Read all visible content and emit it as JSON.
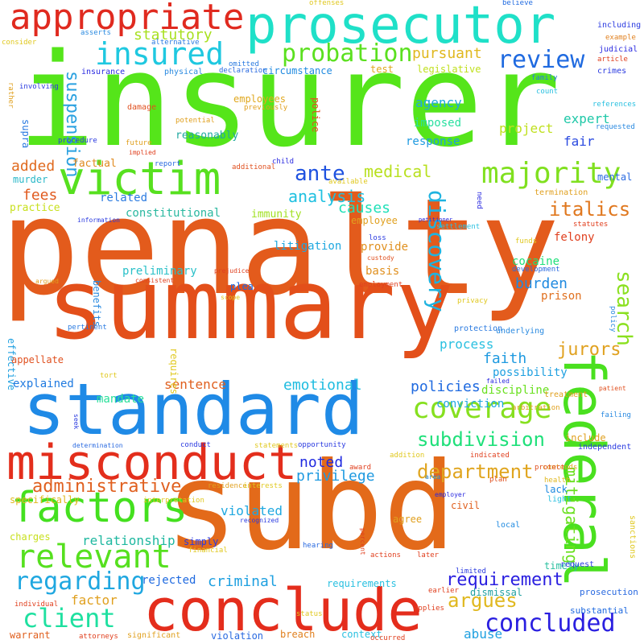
{
  "words": [
    {
      "text": "penalty",
      "color": "#e35b1c",
      "rotated": false
    },
    {
      "text": "insurer",
      "color": "#55e51a",
      "rotated": false
    },
    {
      "text": "summary",
      "color": "#e34f1a",
      "rotated": false
    },
    {
      "text": "subd",
      "color": "#e36a1a",
      "rotated": false
    },
    {
      "text": "standard",
      "color": "#1f8ae6",
      "rotated": false
    },
    {
      "text": "prosecutor",
      "color": "#1fe0c8",
      "rotated": false
    },
    {
      "text": "conclude",
      "color": "#e42d1c",
      "rotated": false
    },
    {
      "text": "misconduct",
      "color": "#e32e1c",
      "rotated": false
    },
    {
      "text": "federal",
      "color": "#4ae01f",
      "rotated": true
    },
    {
      "text": "victim",
      "color": "#57e01f",
      "rotated": false
    },
    {
      "text": "appropriate",
      "color": "#e02a1f",
      "rotated": false
    },
    {
      "text": "factors",
      "color": "#44e01f",
      "rotated": false
    },
    {
      "text": "majority",
      "color": "#80e01f",
      "rotated": false
    },
    {
      "text": "relevant",
      "color": "#56e01f",
      "rotated": false
    },
    {
      "text": "coverage",
      "color": "#86e01f",
      "rotated": false
    },
    {
      "text": "insured",
      "color": "#1fc8e0",
      "rotated": false
    },
    {
      "text": "probation",
      "color": "#5be01f",
      "rotated": false
    },
    {
      "text": "review",
      "color": "#1f6ae0",
      "rotated": false
    },
    {
      "text": "discovery",
      "color": "#1fb3e0",
      "rotated": true
    },
    {
      "text": "search",
      "color": "#8ae01f",
      "rotated": true
    },
    {
      "text": "ante",
      "color": "#1f52e0",
      "rotated": false
    },
    {
      "text": "regarding",
      "color": "#1fa7e0",
      "rotated": false
    },
    {
      "text": "client",
      "color": "#1fe0a0",
      "rotated": false
    },
    {
      "text": "concluded",
      "color": "#2a1fe0",
      "rotated": false
    },
    {
      "text": "department",
      "color": "#e0a51f",
      "rotated": false
    },
    {
      "text": "subdivision",
      "color": "#1fe07a",
      "rotated": false
    },
    {
      "text": "argues",
      "color": "#e0b81f",
      "rotated": false
    },
    {
      "text": "administrative",
      "color": "#e0601f",
      "rotated": false
    },
    {
      "text": "italics",
      "color": "#e0781f",
      "rotated": false
    },
    {
      "text": "requirement",
      "color": "#2a1fe0",
      "rotated": false
    },
    {
      "text": "analysis",
      "color": "#1fc0e0",
      "rotated": false
    },
    {
      "text": "medical",
      "color": "#b8e01f",
      "rotated": false
    },
    {
      "text": "pursuant",
      "color": "#e0b81f",
      "rotated": false
    },
    {
      "text": "suspension",
      "color": "#2aa1e0",
      "rotated": true
    },
    {
      "text": "statutory",
      "color": "#a8e01f",
      "rotated": false
    },
    {
      "text": "jurors",
      "color": "#e0a11f",
      "rotated": false
    },
    {
      "text": "emotional",
      "color": "#1fbce0",
      "rotated": false
    },
    {
      "text": "policies",
      "color": "#1f6ae0",
      "rotated": false
    },
    {
      "text": "mitigating",
      "color": "#6ae01f",
      "rotated": true
    },
    {
      "text": "added",
      "color": "#e06a1f",
      "rotated": false
    },
    {
      "text": "causes",
      "color": "#1fe0b8",
      "rotated": false
    },
    {
      "text": "fees",
      "color": "#e05a1f",
      "rotated": false
    },
    {
      "text": "noted",
      "color": "#1f2ae0",
      "rotated": false
    },
    {
      "text": "privilege",
      "color": "#1f9ae0",
      "rotated": false
    },
    {
      "text": "criminal",
      "color": "#1fa0e0",
      "rotated": false
    },
    {
      "text": "burden",
      "color": "#1f8ae0",
      "rotated": false
    },
    {
      "text": "faith",
      "color": "#1f9ae0",
      "rotated": false
    },
    {
      "text": "process",
      "color": "#2ac0e0",
      "rotated": false
    },
    {
      "text": "agency",
      "color": "#1fa8e0",
      "rotated": false
    },
    {
      "text": "expert",
      "color": "#1fc8a8",
      "rotated": false
    },
    {
      "text": "project",
      "color": "#c0e01f",
      "rotated": false
    },
    {
      "text": "fair",
      "color": "#2a4ae0",
      "rotated": false
    },
    {
      "text": "factor",
      "color": "#e0a01f",
      "rotated": false
    },
    {
      "text": "abuse",
      "color": "#1fa0e0",
      "rotated": false
    },
    {
      "text": "sentence",
      "color": "#e0601f",
      "rotated": false
    },
    {
      "text": "violated",
      "color": "#1fa8e0",
      "rotated": false
    },
    {
      "text": "relationship",
      "color": "#1fb8a0",
      "rotated": false
    },
    {
      "text": "constitutional",
      "color": "#2ab8a0",
      "rotated": false
    },
    {
      "text": "litigation",
      "color": "#1fa8e0",
      "rotated": false
    },
    {
      "text": "preliminary",
      "color": "#2ac0c8",
      "rotated": false
    },
    {
      "text": "mandate",
      "color": "#2ae09a",
      "rotated": false
    },
    {
      "text": "explained",
      "color": "#1f7ae0",
      "rotated": false
    },
    {
      "text": "rejected",
      "color": "#1f6ae0",
      "rotated": false
    },
    {
      "text": "related",
      "color": "#2a7ae0",
      "rotated": false
    },
    {
      "text": "imposed",
      "color": "#2ae0a0",
      "rotated": false
    },
    {
      "text": "response",
      "color": "#1f9ae0",
      "rotated": false
    },
    {
      "text": "felony",
      "color": "#e0401f",
      "rotated": false
    },
    {
      "text": "cocaine",
      "color": "#1fe07a",
      "rotated": false
    },
    {
      "text": "prison",
      "color": "#e0701f",
      "rotated": false
    },
    {
      "text": "basis",
      "color": "#e0901f",
      "rotated": false
    },
    {
      "text": "provide",
      "color": "#e0901f",
      "rotated": false
    },
    {
      "text": "possibility",
      "color": "#1fa0e0",
      "rotated": false
    },
    {
      "text": "discipline",
      "color": "#6ae01f",
      "rotated": false
    },
    {
      "text": "conviction",
      "color": "#1fa8e0",
      "rotated": false
    },
    {
      "text": "practice",
      "color": "#c8e01f",
      "rotated": false
    },
    {
      "text": "immunity",
      "color": "#a0e01f",
      "rotated": false
    },
    {
      "text": "employees",
      "color": "#e0a81f",
      "rotated": false
    },
    {
      "text": "reasonably",
      "color": "#1fa8a0",
      "rotated": false
    },
    {
      "text": "factual",
      "color": "#e08a1f",
      "rotated": false
    },
    {
      "text": "legislative",
      "color": "#c0e01f",
      "rotated": false
    },
    {
      "text": "circumstance",
      "color": "#1f8ae0",
      "rotated": false
    },
    {
      "text": "police",
      "color": "#e0501f",
      "rotated": true
    },
    {
      "text": "requires",
      "color": "#e0c81f",
      "rotated": true
    },
    {
      "text": "benefits",
      "color": "#2a8ae0",
      "rotated": true
    },
    {
      "text": "effective",
      "color": "#1fa0e0",
      "rotated": true
    },
    {
      "text": "appellate",
      "color": "#e0501f",
      "rotated": false
    },
    {
      "text": "requirements",
      "color": "#2ac0e0",
      "rotated": false
    },
    {
      "text": "timely",
      "color": "#2ac0a0",
      "rotated": false
    },
    {
      "text": "simply",
      "color": "#2a3ae0",
      "rotated": false
    },
    {
      "text": "agree",
      "color": "#e0a01f",
      "rotated": false
    },
    {
      "text": "lack",
      "color": "#1f8ae0",
      "rotated": false
    },
    {
      "text": "include",
      "color": "#e0a01f",
      "rotated": false
    },
    {
      "text": "dismissal",
      "color": "#1fa0a0",
      "rotated": false
    },
    {
      "text": "prosecution",
      "color": "#2a6ae0",
      "rotated": false
    },
    {
      "text": "substantial",
      "color": "#1f6ae0",
      "rotated": false
    },
    {
      "text": "civil",
      "color": "#e0601f",
      "rotated": false
    },
    {
      "text": "breach",
      "color": "#e0801f",
      "rotated": false
    },
    {
      "text": "violation",
      "color": "#2a6ae0",
      "rotated": false
    },
    {
      "text": "context",
      "color": "#2ac0e0",
      "rotated": false
    },
    {
      "text": "warrant",
      "color": "#e0601f",
      "rotated": false
    },
    {
      "text": "charges",
      "color": "#c8e01f",
      "rotated": false
    },
    {
      "text": "specifically",
      "color": "#e0b81f",
      "rotated": false
    },
    {
      "text": "employee",
      "color": "#e0a01f",
      "rotated": false
    },
    {
      "text": "mental",
      "color": "#2a6ae0",
      "rotated": false
    },
    {
      "text": "murder",
      "color": "#2ab8c8",
      "rotated": false
    },
    {
      "text": "plea",
      "color": "#1f6ae0",
      "rotated": false
    },
    {
      "text": "supra",
      "color": "#2a7ae0",
      "rotated": true
    },
    {
      "text": "damage",
      "color": "#e0501f",
      "rotated": false
    },
    {
      "text": "test",
      "color": "#e0a81f",
      "rotated": false
    },
    {
      "text": "offenses",
      "color": "#e0c81f",
      "rotated": false
    },
    {
      "text": "believe",
      "color": "#1f6ae0",
      "rotated": false
    },
    {
      "text": "including",
      "color": "#2a3ae0",
      "rotated": false
    },
    {
      "text": "example",
      "color": "#e0801f",
      "rotated": false
    },
    {
      "text": "judicial",
      "color": "#2a2ae0",
      "rotated": false
    },
    {
      "text": "article",
      "color": "#e0401f",
      "rotated": false
    },
    {
      "text": "crimes",
      "color": "#2a3ae0",
      "rotated": false
    },
    {
      "text": "family",
      "color": "#2a7ae0",
      "rotated": false
    },
    {
      "text": "count",
      "color": "#2ac0e0",
      "rotated": false
    },
    {
      "text": "references",
      "color": "#2ac0e0",
      "rotated": false
    },
    {
      "text": "requested",
      "color": "#2a8ae0",
      "rotated": false
    },
    {
      "text": "termination",
      "color": "#e0a01f",
      "rotated": false
    },
    {
      "text": "statutes",
      "color": "#e0401f",
      "rotated": false
    },
    {
      "text": "funds",
      "color": "#e0c81f",
      "rotated": false
    },
    {
      "text": "development",
      "color": "#2a6ae0",
      "rotated": false
    },
    {
      "text": "protection",
      "color": "#2a7ae0",
      "rotated": false
    },
    {
      "text": "underlying",
      "color": "#2a8ae0",
      "rotated": false
    },
    {
      "text": "treatment",
      "color": "#e0a01f",
      "rotated": false
    },
    {
      "text": "arbitration",
      "color": "#e0a01f",
      "rotated": false
    },
    {
      "text": "independent",
      "color": "#2a3ae0",
      "rotated": false
    },
    {
      "text": "contends",
      "color": "#e0a01f",
      "rotated": false
    },
    {
      "text": "protect",
      "color": "#e0501f",
      "rotated": false
    },
    {
      "text": "health",
      "color": "#e0b81f",
      "rotated": false
    },
    {
      "text": "local",
      "color": "#1f8ae0",
      "rotated": false
    },
    {
      "text": "request",
      "color": "#2a3ae0",
      "rotated": false
    },
    {
      "text": "light",
      "color": "#2ac0e0",
      "rotated": false
    },
    {
      "text": "sanctions",
      "color": "#e0c81f",
      "rotated": true
    },
    {
      "text": "policy",
      "color": "#2a8ae0",
      "rotated": true
    },
    {
      "text": "patient",
      "color": "#e0501f",
      "rotated": false
    },
    {
      "text": "failing",
      "color": "#2a8ae0",
      "rotated": false
    },
    {
      "text": "consider",
      "color": "#e0c81f",
      "rotated": false
    },
    {
      "text": "asserts",
      "color": "#2a8ae0",
      "rotated": false
    },
    {
      "text": "involving",
      "color": "#2a3ae0",
      "rotated": false
    },
    {
      "text": "insurance",
      "color": "#2a2ae0",
      "rotated": false
    },
    {
      "text": "physical",
      "color": "#2a8ae0",
      "rotated": false
    },
    {
      "text": "omitted",
      "color": "#2a7ae0",
      "rotated": false
    },
    {
      "text": "declaration",
      "color": "#2a6ae0",
      "rotated": false
    },
    {
      "text": "alternative",
      "color": "#2a7ae0",
      "rotated": false
    },
    {
      "text": "rather",
      "color": "#e0a01f",
      "rotated": true
    },
    {
      "text": "procedure",
      "color": "#2a3ae0",
      "rotated": false
    },
    {
      "text": "potential",
      "color": "#e0a01f",
      "rotated": false
    },
    {
      "text": "future",
      "color": "#e0a01f",
      "rotated": false
    },
    {
      "text": "implied",
      "color": "#e0401f",
      "rotated": false
    },
    {
      "text": "report",
      "color": "#2a6ae0",
      "rotated": false
    },
    {
      "text": "previously",
      "color": "#e0a01f",
      "rotated": false
    },
    {
      "text": "additional",
      "color": "#e0501f",
      "rotated": false
    },
    {
      "text": "child",
      "color": "#2a2ae0",
      "rotated": false
    },
    {
      "text": "available",
      "color": "#e0c81f",
      "rotated": false
    },
    {
      "text": "need",
      "color": "#2a2ae0",
      "rotated": true
    },
    {
      "text": "petitioner",
      "color": "#2a2ae0",
      "rotated": false
    },
    {
      "text": "settlement",
      "color": "#2ac0e0",
      "rotated": false
    },
    {
      "text": "information",
      "color": "#2a3ae0",
      "rotated": false
    },
    {
      "text": "loss",
      "color": "#2a3ae0",
      "rotated": false
    },
    {
      "text": "custody",
      "color": "#e0501f",
      "rotated": false
    },
    {
      "text": "argued",
      "color": "#e0a01f",
      "rotated": false
    },
    {
      "text": "consistent",
      "color": "#e0401f",
      "rotated": false
    },
    {
      "text": "prejudice",
      "color": "#e0401f",
      "rotated": false
    },
    {
      "text": "employment",
      "color": "#e0401f",
      "rotated": false
    },
    {
      "text": "scope",
      "color": "#e0c81f",
      "rotated": false
    },
    {
      "text": "privacy",
      "color": "#e0c81f",
      "rotated": false
    },
    {
      "text": "pertinent",
      "color": "#2a7ae0",
      "rotated": false
    },
    {
      "text": "tort",
      "color": "#e0c81f",
      "rotated": false
    },
    {
      "text": "failed",
      "color": "#2a2ae0",
      "rotated": false
    },
    {
      "text": "seek",
      "color": "#2a3ae0",
      "rotated": true
    },
    {
      "text": "determination",
      "color": "#2a6ae0",
      "rotated": false
    },
    {
      "text": "conduct",
      "color": "#2a3ae0",
      "rotated": false
    },
    {
      "text": "statements",
      "color": "#e0c81f",
      "rotated": false
    },
    {
      "text": "opportunity",
      "color": "#2a3ae0",
      "rotated": false
    },
    {
      "text": "award",
      "color": "#e0401f",
      "rotated": false
    },
    {
      "text": "addition",
      "color": "#e0c81f",
      "rotated": false
    },
    {
      "text": "indicated",
      "color": "#e0401f",
      "rotated": false
    },
    {
      "text": "residence",
      "color": "#e0a01f",
      "rotated": false
    },
    {
      "text": "interests",
      "color": "#e0c81f",
      "rotated": false
    },
    {
      "text": "area",
      "color": "#2a8ae0",
      "rotated": false
    },
    {
      "text": "plan",
      "color": "#e0501f",
      "rotated": false
    },
    {
      "text": "interpretation",
      "color": "#e0c81f",
      "rotated": false
    },
    {
      "text": "employer",
      "color": "#2a2ae0",
      "rotated": false
    },
    {
      "text": "financial",
      "color": "#e0c81f",
      "rotated": false
    },
    {
      "text": "recognized",
      "color": "#2a3ae0",
      "rotated": false
    },
    {
      "text": "percent",
      "color": "#e0401f",
      "rotated": true
    },
    {
      "text": "hearing",
      "color": "#2a6ae0",
      "rotated": false
    },
    {
      "text": "actions",
      "color": "#e0401f",
      "rotated": false
    },
    {
      "text": "later",
      "color": "#e0401f",
      "rotated": false
    },
    {
      "text": "limited",
      "color": "#2a3ae0",
      "rotated": false
    },
    {
      "text": "earlier",
      "color": "#e0401f",
      "rotated": false
    },
    {
      "text": "applies",
      "color": "#e0401f",
      "rotated": false
    },
    {
      "text": "status",
      "color": "#e0c81f",
      "rotated": false
    },
    {
      "text": "occurred",
      "color": "#e0401f",
      "rotated": false
    },
    {
      "text": "attorneys",
      "color": "#e0401f",
      "rotated": false
    },
    {
      "text": "significant",
      "color": "#e0a01f",
      "rotated": false
    },
    {
      "text": "individual",
      "color": "#e0401f",
      "rotated": false
    }
  ]
}
